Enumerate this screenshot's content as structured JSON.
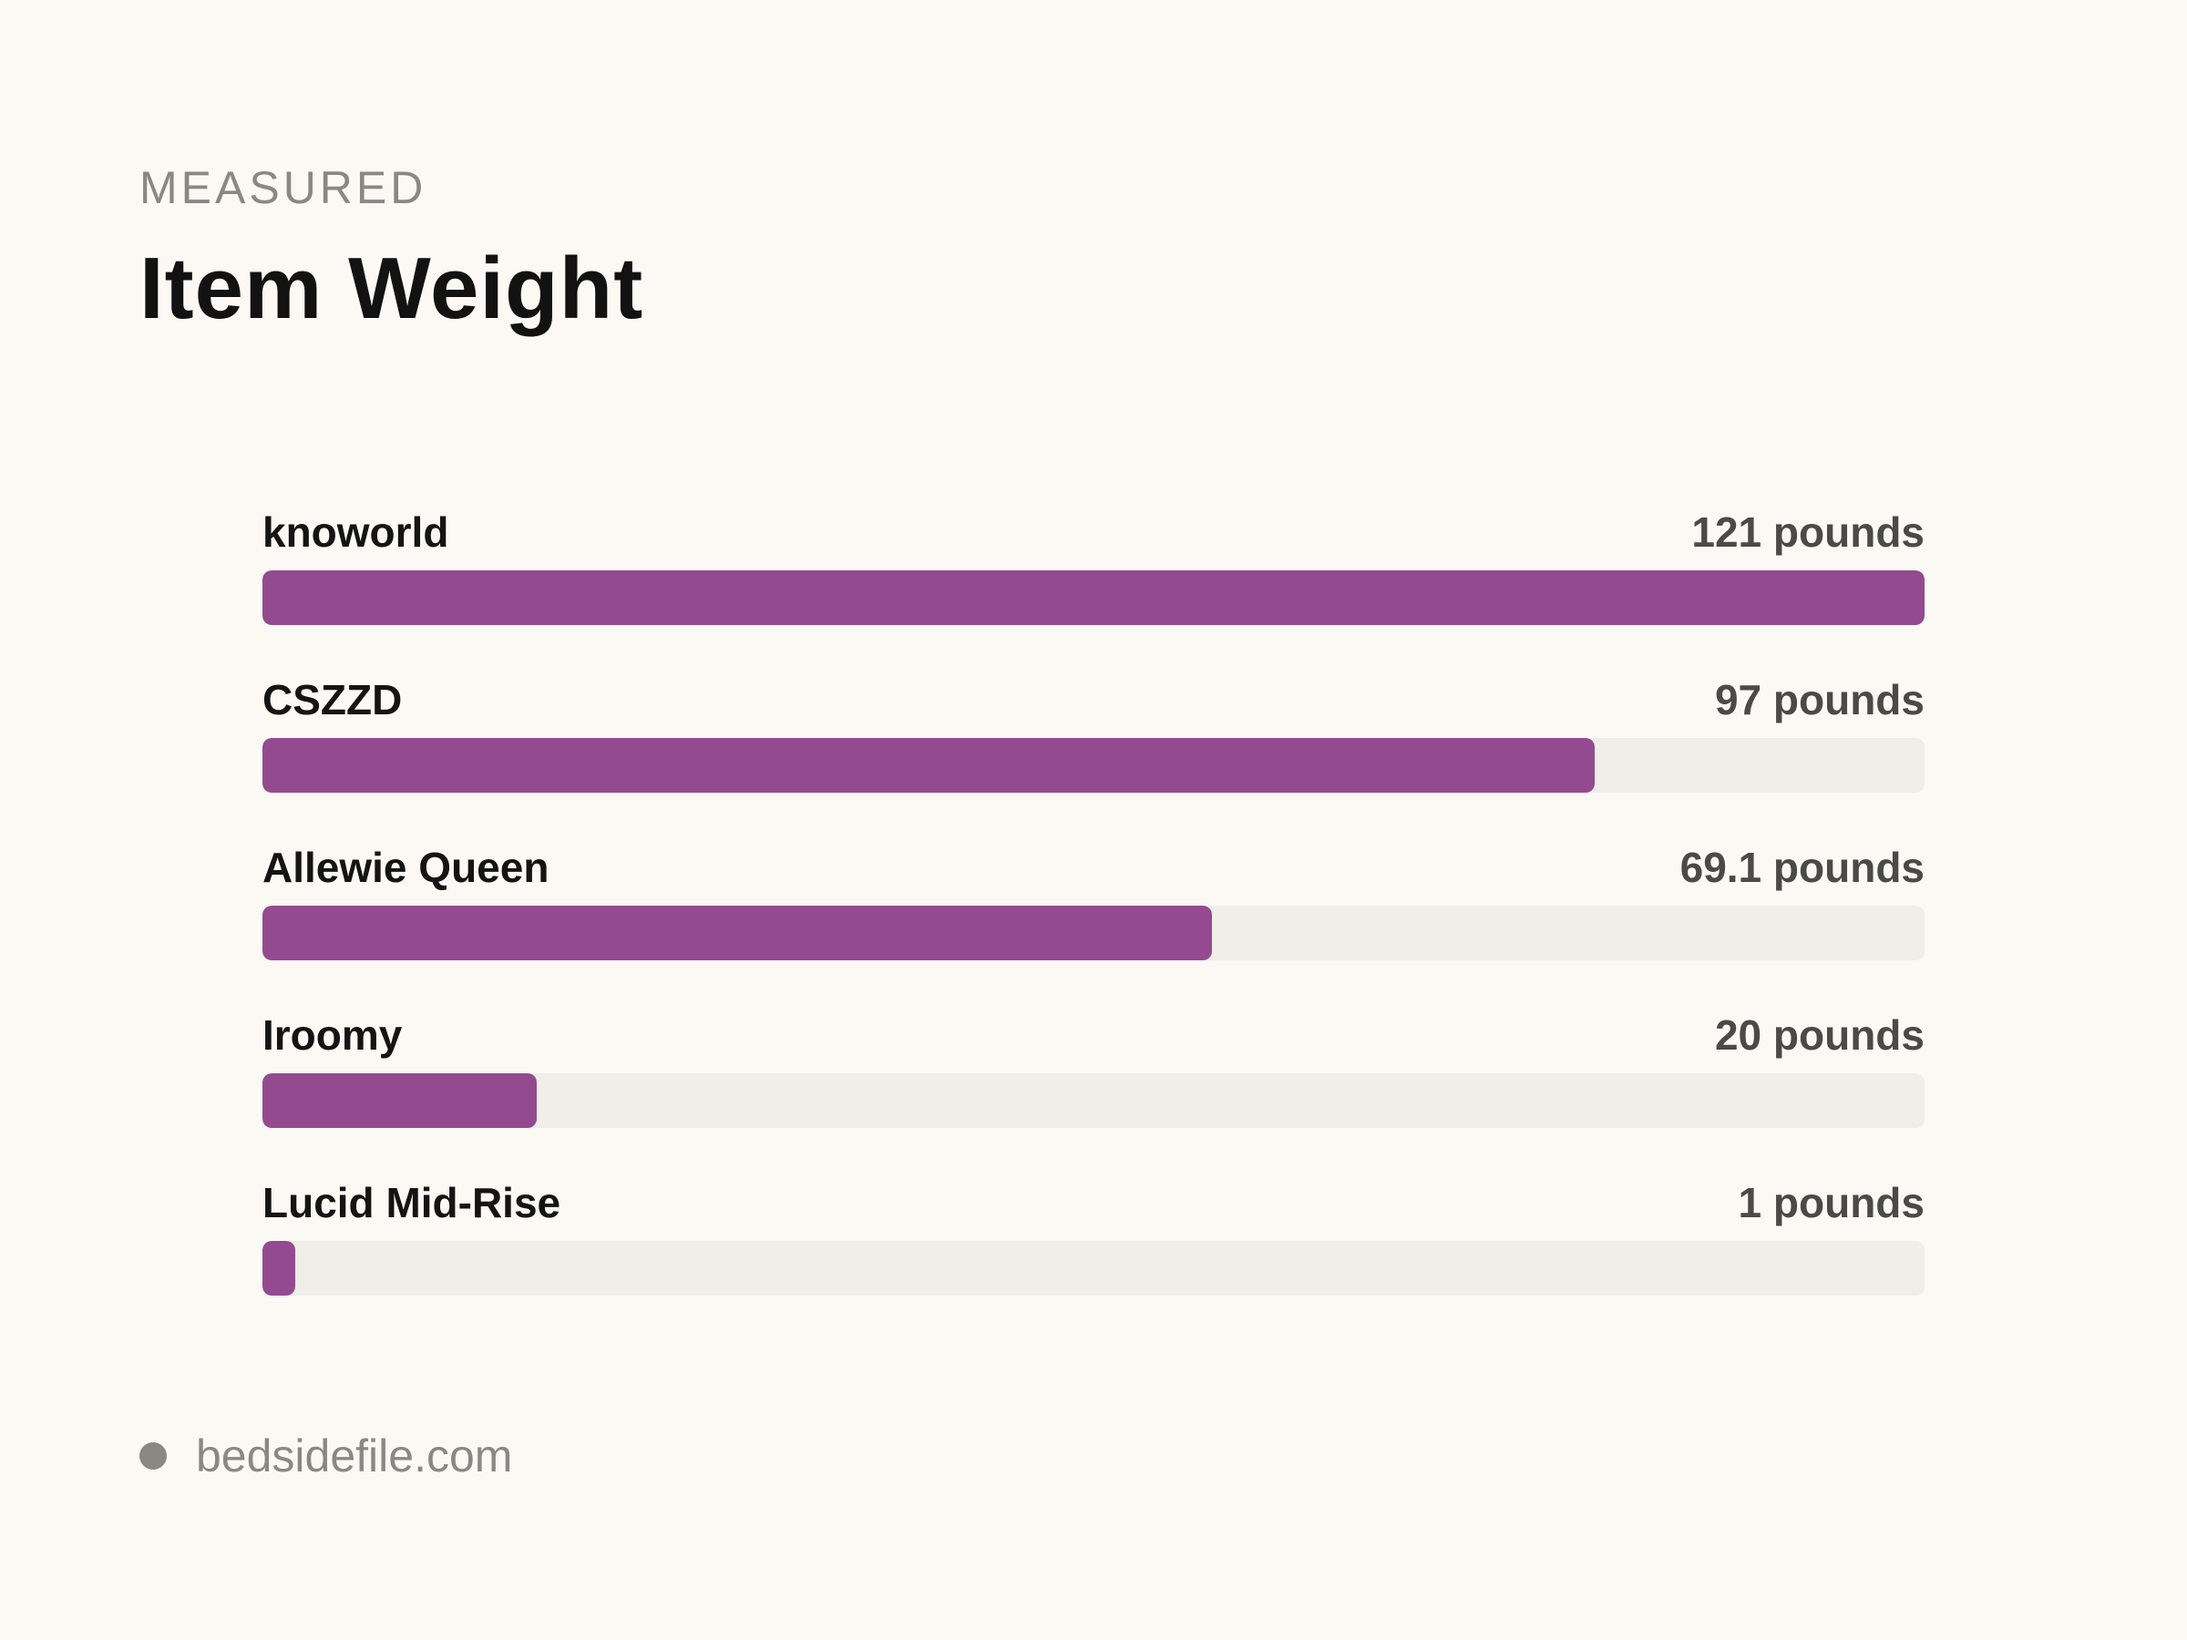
{
  "header": {
    "eyebrow": "MEASURED",
    "title": "Item Weight"
  },
  "footer": {
    "source": "bedsidefile.com"
  },
  "colors": {
    "bar": "#944a8f",
    "track": "#efeee9",
    "background": "#faf9f4"
  },
  "chart_data": {
    "type": "bar",
    "orientation": "horizontal",
    "title": "Item Weight",
    "categories": [
      "knoworld",
      "CSZZD",
      "Allewie Queen",
      "Iroomy",
      "Lucid Mid-Rise"
    ],
    "values": [
      121,
      97,
      69.1,
      20,
      1
    ],
    "value_labels": [
      "121 pounds",
      "97 pounds",
      "69.1 pounds",
      "20 pounds",
      "1 pounds"
    ],
    "xlim": [
      0,
      121
    ],
    "grid": false
  }
}
